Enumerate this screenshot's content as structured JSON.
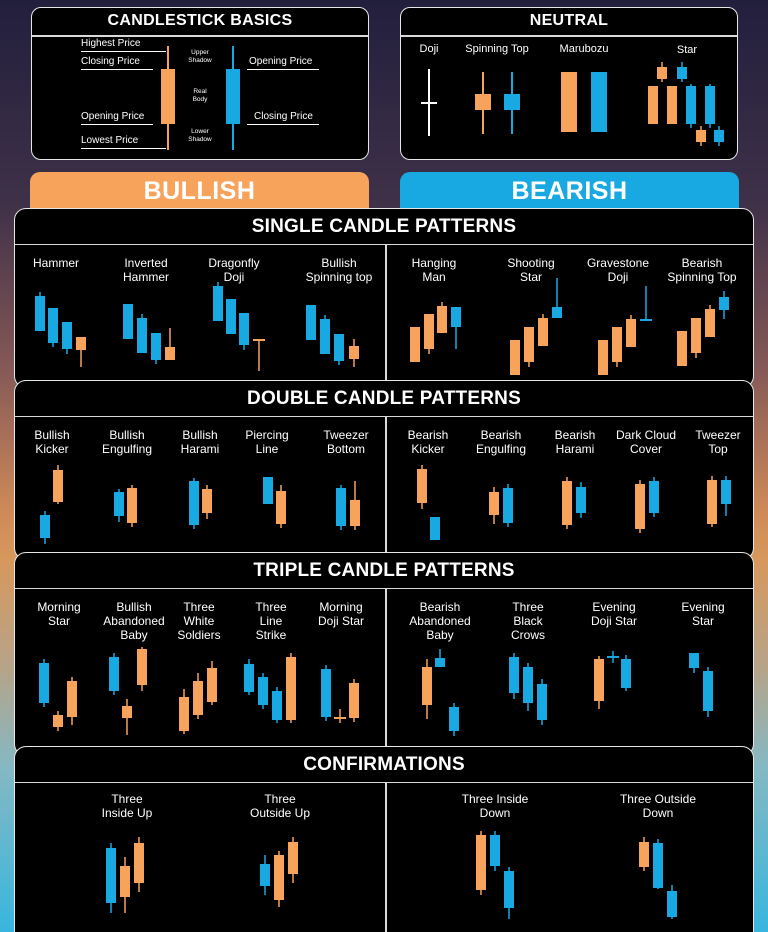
{
  "colors": {
    "bull": "#f7a35c",
    "bear": "#19a9e2",
    "wick_bull": "#f7a35c",
    "wick_bear": "#19a9e2"
  },
  "basics": {
    "title": "CANDLESTICK BASICS",
    "highest_price": "Highest Price",
    "closing_price_left": "Closing Price",
    "opening_price_left": "Opening Price",
    "lowest_price": "Lowest Price",
    "upper": "Upper",
    "shadow_upper": "Shadow",
    "real": "Real",
    "body": "Body",
    "lower": "Lower",
    "shadow_lower": "Shadow",
    "opening_price_right": "Opening Price",
    "closing_price_right": "Closing Price"
  },
  "neutral": {
    "title": "NEUTRAL",
    "doji": "Doji",
    "spinning_top": "Spinning Top",
    "marubozu": "Marubozu",
    "star": "Star"
  },
  "tabs": {
    "bullish": "BULLISH",
    "bearish": "BEARISH"
  },
  "single": {
    "title": "SINGLE CANDLE PATTERNS",
    "left": [
      "Hammer",
      "Inverted Hammer",
      "Dragonfly Doji",
      "Bullish Spinning top"
    ],
    "right": [
      "Hanging Man",
      "Shooting Star",
      "Gravestone Doji",
      "Bearish Spinning Top"
    ]
  },
  "double": {
    "title": "DOUBLE CANDLE PATTERNS",
    "left": [
      "Bullish Kicker",
      "Bullish Engulfing",
      "Bullish Harami",
      "Piercing Line",
      "Tweezer Bottom"
    ],
    "right": [
      "Bearish Kicker",
      "Bearish Engulfing",
      "Bearish Harami",
      "Dark Cloud Cover",
      "Tweezer Top"
    ]
  },
  "triple": {
    "title": "TRIPLE CANDLE PATTERNS",
    "left": [
      "Morning Star",
      "Bullish Abandoned Baby",
      "Three White Soldiers",
      "Three Line Strike",
      "Morning Doji Star"
    ],
    "right": [
      "Bearish Abandoned Baby",
      "Three Black Crows",
      "Evening Doji Star",
      "Evening Star"
    ]
  },
  "confirm": {
    "title": "CONFIRMATIONS",
    "left": [
      "Three Inside Up",
      "Three Outside Up"
    ],
    "right": [
      "Three Inside Down",
      "Three Outside Down"
    ]
  }
}
